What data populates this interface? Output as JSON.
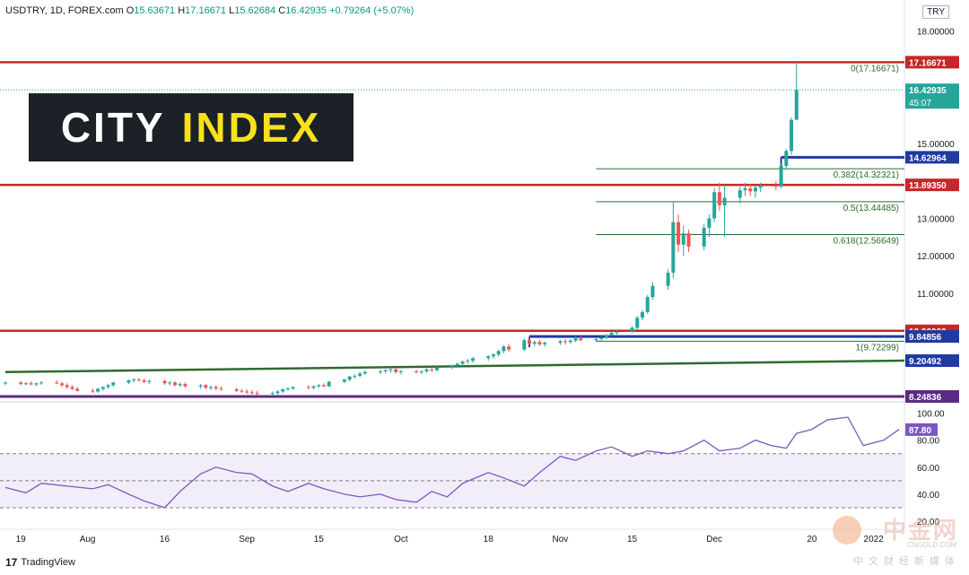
{
  "header": {
    "symbol": "USDTRY, 1D, FOREX.com",
    "open_label": "O",
    "open": "15.63671",
    "high_label": "H",
    "high": "17.16671",
    "low_label": "L",
    "low": "15.62684",
    "close_label": "C",
    "close": "16.42935",
    "change": "+0.79264 (+5.07%)"
  },
  "currency_badge": "TRY",
  "logo": {
    "word1": "CITY",
    "word2": "INDEX"
  },
  "footer": {
    "brand": "TradingView"
  },
  "watermark": {
    "cn": "中金网",
    "en": "CNGOLD.COM",
    "sub": "中文财经新媒体"
  },
  "colors": {
    "up": "#26a69a",
    "down": "#ef5350",
    "resistance": "#c62828",
    "support_blue": "#1f3aa0",
    "trend_green": "#2e6b2e",
    "purple": "#5b2a86",
    "rsi": "#7e57c2",
    "fib": "#2e6b2e"
  },
  "chart_data": {
    "type": "candlestick",
    "ylim": [
      8.2,
      18.3
    ],
    "price_ticks": [
      11.0,
      12.0,
      13.0,
      15.0,
      18.0
    ],
    "price_tick_labels": [
      "11.00000",
      "12.00000",
      "13.00000",
      "15.00000",
      "18.00000"
    ],
    "x_tick_labels": [
      {
        "label": "19",
        "date": "2021-07-19"
      },
      {
        "label": "Aug",
        "date": "2021-08-01"
      },
      {
        "label": "16",
        "date": "2021-08-16"
      },
      {
        "label": "Sep",
        "date": "2021-09-01"
      },
      {
        "label": "15",
        "date": "2021-09-15"
      },
      {
        "label": "Oct",
        "date": "2021-10-01"
      },
      {
        "label": "18",
        "date": "2021-10-18"
      },
      {
        "label": "Nov",
        "date": "2021-11-01"
      },
      {
        "label": "15",
        "date": "2021-11-15"
      },
      {
        "label": "Dec",
        "date": "2021-12-01"
      },
      {
        "label": "20",
        "date": "2021-12-20"
      },
      {
        "label": "2022",
        "date": "2022-01-01"
      }
    ],
    "x_range": [
      "2021-07-16",
      "2022-01-07"
    ],
    "horizontal_levels": [
      {
        "value": 17.16671,
        "label": "17.16671",
        "style": "resistance"
      },
      {
        "value": 13.8935,
        "label": "13.89350",
        "style": "resistance"
      },
      {
        "value": 10.0,
        "label": "10.00000",
        "style": "resistance"
      },
      {
        "value": 8.24836,
        "label": "8.24836",
        "style": "purple"
      },
      {
        "value": 14.62964,
        "label": "14.62964",
        "style": "support_blue",
        "from": "2021-12-14"
      },
      {
        "value": 9.84856,
        "label": "9.84856",
        "style": "support_blue",
        "from": "2021-10-26"
      }
    ],
    "current_price": {
      "value": 16.42935,
      "label": "16.42935",
      "countdown": "45:07"
    },
    "trendline": {
      "from": {
        "date": "2021-07-16",
        "value": 8.9
      },
      "to": {
        "date": "2022-01-07",
        "value": 9.2049
      },
      "label": "9.20492"
    },
    "fib_levels": [
      {
        "label": "0(17.16671)",
        "value": 17.16671
      },
      {
        "label": "0.382(14.32321)",
        "value": 14.32321
      },
      {
        "label": "0.5(13.44485)",
        "value": 13.44485
      },
      {
        "label": "0.618(12.56649)",
        "value": 12.56649
      },
      {
        "label": "1(9.72299)",
        "value": 9.72299
      }
    ],
    "fib_start": "2021-11-08",
    "candles": [
      [
        "2021-07-16",
        8.6,
        8.65,
        8.55,
        8.62
      ],
      [
        "2021-07-19",
        8.62,
        8.66,
        8.55,
        8.58
      ],
      [
        "2021-07-20",
        8.58,
        8.64,
        8.54,
        8.6
      ],
      [
        "2021-07-21",
        8.6,
        8.65,
        8.55,
        8.57
      ],
      [
        "2021-07-22",
        8.57,
        8.62,
        8.52,
        8.6
      ],
      [
        "2021-07-23",
        8.6,
        8.66,
        8.56,
        8.62
      ],
      [
        "2021-07-26",
        8.62,
        8.68,
        8.58,
        8.6
      ],
      [
        "2021-07-27",
        8.6,
        8.64,
        8.5,
        8.55
      ],
      [
        "2021-07-28",
        8.55,
        8.6,
        8.45,
        8.5
      ],
      [
        "2021-07-29",
        8.5,
        8.55,
        8.42,
        8.45
      ],
      [
        "2021-07-30",
        8.45,
        8.5,
        8.38,
        8.4
      ],
      [
        "2021-08-02",
        8.4,
        8.46,
        8.34,
        8.38
      ],
      [
        "2021-08-03",
        8.38,
        8.48,
        8.34,
        8.45
      ],
      [
        "2021-08-04",
        8.45,
        8.52,
        8.4,
        8.5
      ],
      [
        "2021-08-05",
        8.5,
        8.58,
        8.46,
        8.55
      ],
      [
        "2021-08-06",
        8.55,
        8.64,
        8.5,
        8.62
      ],
      [
        "2021-08-09",
        8.62,
        8.7,
        8.58,
        8.68
      ],
      [
        "2021-08-10",
        8.68,
        8.74,
        8.62,
        8.7
      ],
      [
        "2021-08-11",
        8.7,
        8.75,
        8.64,
        8.68
      ],
      [
        "2021-08-12",
        8.68,
        8.72,
        8.6,
        8.64
      ],
      [
        "2021-08-13",
        8.64,
        8.7,
        8.58,
        8.66
      ],
      [
        "2021-08-16",
        8.66,
        8.7,
        8.56,
        8.6
      ],
      [
        "2021-08-17",
        8.6,
        8.66,
        8.54,
        8.62
      ],
      [
        "2021-08-18",
        8.62,
        8.66,
        8.52,
        8.55
      ],
      [
        "2021-08-19",
        8.55,
        8.62,
        8.5,
        8.58
      ],
      [
        "2021-08-20",
        8.58,
        8.62,
        8.48,
        8.52
      ],
      [
        "2021-08-23",
        8.52,
        8.58,
        8.46,
        8.55
      ],
      [
        "2021-08-24",
        8.55,
        8.58,
        8.45,
        8.48
      ],
      [
        "2021-08-25",
        8.48,
        8.54,
        8.42,
        8.5
      ],
      [
        "2021-08-26",
        8.5,
        8.55,
        8.42,
        8.46
      ],
      [
        "2021-08-27",
        8.46,
        8.52,
        8.4,
        8.44
      ],
      [
        "2021-08-30",
        8.44,
        8.48,
        8.36,
        8.4
      ],
      [
        "2021-08-31",
        8.4,
        8.45,
        8.34,
        8.38
      ],
      [
        "2021-09-01",
        8.38,
        8.44,
        8.32,
        8.36
      ],
      [
        "2021-09-02",
        8.36,
        8.42,
        8.3,
        8.34
      ],
      [
        "2021-09-03",
        8.34,
        8.4,
        8.28,
        8.32
      ],
      [
        "2021-09-06",
        8.32,
        8.38,
        8.28,
        8.34
      ],
      [
        "2021-09-07",
        8.34,
        8.42,
        8.3,
        8.38
      ],
      [
        "2021-09-08",
        8.38,
        8.46,
        8.34,
        8.44
      ],
      [
        "2021-09-09",
        8.44,
        8.5,
        8.4,
        8.46
      ],
      [
        "2021-09-10",
        8.46,
        8.52,
        8.42,
        8.5
      ],
      [
        "2021-09-13",
        8.5,
        8.55,
        8.44,
        8.48
      ],
      [
        "2021-09-14",
        8.48,
        8.54,
        8.44,
        8.52
      ],
      [
        "2021-09-15",
        8.52,
        8.58,
        8.48,
        8.55
      ],
      [
        "2021-09-16",
        8.55,
        8.6,
        8.5,
        8.52
      ],
      [
        "2021-09-17",
        8.52,
        8.66,
        8.5,
        8.64
      ],
      [
        "2021-09-20",
        8.64,
        8.72,
        8.6,
        8.7
      ],
      [
        "2021-09-21",
        8.7,
        8.8,
        8.66,
        8.78
      ],
      [
        "2021-09-22",
        8.78,
        8.84,
        8.72,
        8.8
      ],
      [
        "2021-09-23",
        8.8,
        8.9,
        8.76,
        8.86
      ],
      [
        "2021-09-24",
        8.86,
        8.94,
        8.82,
        8.9
      ],
      [
        "2021-09-27",
        8.9,
        8.96,
        8.84,
        8.92
      ],
      [
        "2021-09-28",
        8.92,
        8.98,
        8.86,
        8.95
      ],
      [
        "2021-09-29",
        8.95,
        9.0,
        8.88,
        8.97
      ],
      [
        "2021-09-30",
        8.97,
        9.0,
        8.86,
        8.9
      ],
      [
        "2021-10-01",
        8.9,
        8.96,
        8.84,
        8.92
      ],
      [
        "2021-10-04",
        8.92,
        8.96,
        8.86,
        8.9
      ],
      [
        "2021-10-05",
        8.9,
        8.94,
        8.84,
        8.92
      ],
      [
        "2021-10-06",
        8.92,
        9.0,
        8.88,
        8.97
      ],
      [
        "2021-10-07",
        8.97,
        9.02,
        8.9,
        8.95
      ],
      [
        "2021-10-08",
        8.95,
        9.05,
        8.92,
        9.02
      ],
      [
        "2021-10-11",
        9.02,
        9.1,
        8.98,
        9.08
      ],
      [
        "2021-10-12",
        9.08,
        9.15,
        9.02,
        9.12
      ],
      [
        "2021-10-13",
        9.12,
        9.2,
        9.06,
        9.18
      ],
      [
        "2021-10-14",
        9.18,
        9.25,
        9.12,
        9.2
      ],
      [
        "2021-10-15",
        9.2,
        9.3,
        9.15,
        9.27
      ],
      [
        "2021-10-18",
        9.27,
        9.35,
        9.2,
        9.32
      ],
      [
        "2021-10-19",
        9.32,
        9.4,
        9.26,
        9.37
      ],
      [
        "2021-10-20",
        9.37,
        9.5,
        9.32,
        9.46
      ],
      [
        "2021-10-21",
        9.46,
        9.62,
        9.4,
        9.58
      ],
      [
        "2021-10-22",
        9.58,
        9.65,
        9.44,
        9.5
      ],
      [
        "2021-10-25",
        9.5,
        9.8,
        9.46,
        9.75
      ],
      [
        "2021-10-26",
        9.75,
        9.85,
        9.62,
        9.66
      ],
      [
        "2021-10-27",
        9.66,
        9.74,
        9.58,
        9.7
      ],
      [
        "2021-10-28",
        9.7,
        9.76,
        9.6,
        9.64
      ],
      [
        "2021-10-29",
        9.64,
        9.72,
        9.58,
        9.68
      ],
      [
        "2021-11-01",
        9.68,
        9.76,
        9.62,
        9.72
      ],
      [
        "2021-11-02",
        9.72,
        9.78,
        9.64,
        9.7
      ],
      [
        "2021-11-03",
        9.7,
        9.78,
        9.66,
        9.74
      ],
      [
        "2021-11-04",
        9.74,
        9.85,
        9.7,
        9.8
      ],
      [
        "2021-11-05",
        9.8,
        9.86,
        9.72,
        9.75
      ],
      [
        "2021-11-08",
        9.75,
        9.82,
        9.7,
        9.78
      ],
      [
        "2021-11-09",
        9.78,
        9.86,
        9.74,
        9.82
      ],
      [
        "2021-11-10",
        9.82,
        9.92,
        9.78,
        9.88
      ],
      [
        "2021-11-11",
        9.88,
        9.98,
        9.84,
        9.95
      ],
      [
        "2021-11-12",
        9.95,
        10.02,
        9.9,
        9.98
      ],
      [
        "2021-11-15",
        9.98,
        10.12,
        9.94,
        10.08
      ],
      [
        "2021-11-16",
        10.08,
        10.4,
        10.02,
        10.35
      ],
      [
        "2021-11-17",
        10.35,
        10.55,
        10.28,
        10.5
      ],
      [
        "2021-11-18",
        10.5,
        10.95,
        10.45,
        10.9
      ],
      [
        "2021-11-19",
        10.9,
        11.3,
        10.82,
        11.2
      ],
      [
        "2021-11-22",
        11.2,
        11.65,
        11.1,
        11.55
      ],
      [
        "2021-11-23",
        11.55,
        13.45,
        11.4,
        12.9
      ],
      [
        "2021-11-24",
        12.9,
        13.1,
        12.1,
        12.3
      ],
      [
        "2021-11-25",
        12.3,
        12.8,
        12.0,
        12.6
      ],
      [
        "2021-11-26",
        12.6,
        12.7,
        12.1,
        12.25
      ],
      [
        "2021-11-29",
        12.25,
        12.85,
        12.15,
        12.75
      ],
      [
        "2021-11-30",
        12.75,
        13.1,
        12.5,
        13.0
      ],
      [
        "2021-12-01",
        13.0,
        13.8,
        12.9,
        13.7
      ],
      [
        "2021-12-02",
        13.7,
        13.95,
        13.2,
        13.35
      ],
      [
        "2021-12-03",
        13.35,
        13.9,
        12.5,
        13.55
      ],
      [
        "2021-12-06",
        13.55,
        13.85,
        13.4,
        13.75
      ],
      [
        "2021-12-07",
        13.75,
        13.95,
        13.6,
        13.8
      ],
      [
        "2021-12-08",
        13.8,
        13.92,
        13.6,
        13.72
      ],
      [
        "2021-12-09",
        13.72,
        13.88,
        13.55,
        13.82
      ],
      [
        "2021-12-10",
        13.82,
        13.95,
        13.7,
        13.88
      ],
      [
        "2021-12-13",
        13.88,
        14.0,
        13.75,
        13.85
      ],
      [
        "2021-12-14",
        13.85,
        14.45,
        13.8,
        14.4
      ],
      [
        "2021-12-15",
        14.4,
        14.85,
        14.3,
        14.8
      ],
      [
        "2021-12-16",
        14.8,
        15.7,
        14.7,
        15.63
      ],
      [
        "2021-12-17",
        15.63,
        17.16671,
        15.62684,
        16.42935
      ]
    ],
    "rsi": {
      "label": "87.80",
      "current": 87.8,
      "ylim": [
        22,
        103
      ],
      "tick_labels": [
        "100.00",
        "80.00",
        "60.00",
        "40.00",
        "20.00"
      ],
      "ticks": [
        100,
        80,
        60,
        40,
        20
      ],
      "bands": [
        70,
        50,
        30
      ],
      "values": [
        [
          "2021-07-16",
          45
        ],
        [
          "2021-07-20",
          41
        ],
        [
          "2021-07-23",
          48
        ],
        [
          "2021-07-28",
          46
        ],
        [
          "2021-08-02",
          44
        ],
        [
          "2021-08-05",
          47
        ],
        [
          "2021-08-09",
          40
        ],
        [
          "2021-08-12",
          35
        ],
        [
          "2021-08-16",
          30
        ],
        [
          "2021-08-19",
          42
        ],
        [
          "2021-08-23",
          55
        ],
        [
          "2021-08-26",
          60
        ],
        [
          "2021-08-30",
          56
        ],
        [
          "2021-09-02",
          55
        ],
        [
          "2021-09-06",
          46
        ],
        [
          "2021-09-09",
          42
        ],
        [
          "2021-09-13",
          48
        ],
        [
          "2021-09-16",
          44
        ],
        [
          "2021-09-20",
          40
        ],
        [
          "2021-09-23",
          38
        ],
        [
          "2021-09-27",
          40
        ],
        [
          "2021-09-30",
          36
        ],
        [
          "2021-10-04",
          34
        ],
        [
          "2021-10-07",
          42
        ],
        [
          "2021-10-10",
          38
        ],
        [
          "2021-10-13",
          48
        ],
        [
          "2021-10-18",
          56
        ],
        [
          "2021-10-21",
          52
        ],
        [
          "2021-10-25",
          46
        ],
        [
          "2021-10-28",
          56
        ],
        [
          "2021-11-01",
          68
        ],
        [
          "2021-11-04",
          65
        ],
        [
          "2021-11-08",
          72
        ],
        [
          "2021-11-11",
          75
        ],
        [
          "2021-11-15",
          68
        ],
        [
          "2021-11-18",
          72
        ],
        [
          "2021-11-22",
          70
        ],
        [
          "2021-11-25",
          72
        ],
        [
          "2021-11-29",
          80
        ],
        [
          "2021-12-02",
          72
        ],
        [
          "2021-12-06",
          74
        ],
        [
          "2021-12-09",
          80
        ],
        [
          "2021-12-12",
          76
        ],
        [
          "2021-12-15",
          74
        ],
        [
          "2021-12-17",
          85
        ],
        [
          "2021-12-20",
          88
        ],
        [
          "2021-12-23",
          95
        ],
        [
          "2021-12-27",
          97
        ],
        [
          "2021-12-30",
          76
        ],
        [
          "2022-01-03",
          80
        ],
        [
          "2022-01-06",
          88
        ]
      ]
    }
  }
}
